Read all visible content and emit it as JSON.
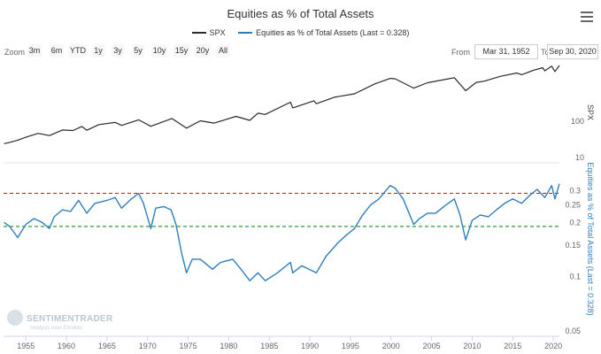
{
  "title": "Equities as % of Total Assets",
  "legend": [
    {
      "label": "SPX",
      "color": "#2b2b2b"
    },
    {
      "label": "Equities as % of Total Assets (Last = 0.328)",
      "color": "#2f7ebc"
    }
  ],
  "zoom": {
    "label": "Zoom",
    "buttons": [
      "3m",
      "6m",
      "YTD",
      "1y",
      "3y",
      "5y",
      "10y",
      "15y",
      "20y",
      "All"
    ]
  },
  "range": {
    "from_label": "From",
    "from_value": "Mar 31, 1952",
    "to_label": "To",
    "to_value": "Sep 30, 2020"
  },
  "watermark": {
    "brand": "SENTIMENTRADER",
    "tagline": "Analysis over Emotion"
  },
  "colors": {
    "spx": "#2b2b2b",
    "equities": "#2f7ebc",
    "upper_ref": "#d62728",
    "lower_ref": "#2ca02c"
  },
  "chart_data": [
    {
      "type": "line",
      "name": "SPX",
      "axis_label": "SPX",
      "scale": "log",
      "ylim": [
        10,
        3000
      ],
      "yticks": [
        10,
        100
      ],
      "xlim": [
        1952.25,
        2020.75
      ],
      "points": [
        [
          1952.3,
          24
        ],
        [
          1953.0,
          26
        ],
        [
          1954.0,
          30
        ],
        [
          1955.0,
          36
        ],
        [
          1956.5,
          46
        ],
        [
          1957.9,
          40
        ],
        [
          1959.5,
          57
        ],
        [
          1960.8,
          55
        ],
        [
          1961.9,
          71
        ],
        [
          1962.5,
          56
        ],
        [
          1964.0,
          80
        ],
        [
          1966.0,
          92
        ],
        [
          1966.8,
          76
        ],
        [
          1968.9,
          108
        ],
        [
          1970.4,
          72
        ],
        [
          1973.0,
          118
        ],
        [
          1974.8,
          64
        ],
        [
          1976.5,
          102
        ],
        [
          1978.2,
          88
        ],
        [
          1980.9,
          135
        ],
        [
          1982.6,
          105
        ],
        [
          1983.6,
          165
        ],
        [
          1984.5,
          152
        ],
        [
          1987.6,
          330
        ],
        [
          1987.9,
          230
        ],
        [
          1990.5,
          360
        ],
        [
          1990.8,
          300
        ],
        [
          1993.0,
          450
        ],
        [
          1995.5,
          560
        ],
        [
          1998.0,
          1050
        ],
        [
          1999.9,
          1480
        ],
        [
          2000.5,
          1450
        ],
        [
          2002.8,
          800
        ],
        [
          2004.5,
          1130
        ],
        [
          2007.8,
          1550
        ],
        [
          2009.2,
          680
        ],
        [
          2010.5,
          1150
        ],
        [
          2011.5,
          1250
        ],
        [
          2013.5,
          1700
        ],
        [
          2015.5,
          2080
        ],
        [
          2016.1,
          1880
        ],
        [
          2017.5,
          2450
        ],
        [
          2018.7,
          2920
        ],
        [
          2018.95,
          2400
        ],
        [
          2019.8,
          3200
        ],
        [
          2020.2,
          2300
        ],
        [
          2020.75,
          3363
        ]
      ]
    },
    {
      "type": "line",
      "name": "Equities as % of Total Assets (Last = 0.328)",
      "axis_label": "Equities as % of Total Assets (Last = 0.328)",
      "scale": "log",
      "ylim": [
        0.05,
        0.4
      ],
      "yticks": [
        0.05,
        0.1,
        0.15,
        0.2,
        0.25,
        0.3
      ],
      "xticks": [
        1955,
        1960,
        1965,
        1970,
        1975,
        1980,
        1985,
        1990,
        1995,
        2000,
        2005,
        2010,
        2015,
        2020
      ],
      "reference_lines": [
        {
          "value": 0.29,
          "style": "dashed",
          "color": "#d62728"
        },
        {
          "value": 0.19,
          "style": "dashed",
          "color": "#2ca02c"
        }
      ],
      "last": 0.328,
      "points": [
        [
          1952.3,
          0.2
        ],
        [
          1953.0,
          0.19
        ],
        [
          1954.0,
          0.165
        ],
        [
          1955.0,
          0.195
        ],
        [
          1956.0,
          0.21
        ],
        [
          1957.0,
          0.2
        ],
        [
          1957.9,
          0.185
        ],
        [
          1958.5,
          0.215
        ],
        [
          1959.5,
          0.235
        ],
        [
          1960.5,
          0.23
        ],
        [
          1961.5,
          0.265
        ],
        [
          1962.5,
          0.225
        ],
        [
          1963.5,
          0.255
        ],
        [
          1965.0,
          0.265
        ],
        [
          1966.0,
          0.275
        ],
        [
          1966.8,
          0.24
        ],
        [
          1968.0,
          0.27
        ],
        [
          1968.9,
          0.29
        ],
        [
          1969.5,
          0.255
        ],
        [
          1970.4,
          0.185
        ],
        [
          1971.0,
          0.24
        ],
        [
          1972.0,
          0.245
        ],
        [
          1972.9,
          0.235
        ],
        [
          1973.5,
          0.195
        ],
        [
          1974.2,
          0.135
        ],
        [
          1974.8,
          0.105
        ],
        [
          1975.5,
          0.125
        ],
        [
          1976.5,
          0.125
        ],
        [
          1978.0,
          0.11
        ],
        [
          1979.0,
          0.12
        ],
        [
          1980.5,
          0.125
        ],
        [
          1981.5,
          0.11
        ],
        [
          1982.6,
          0.095
        ],
        [
          1983.6,
          0.105
        ],
        [
          1984.5,
          0.095
        ],
        [
          1986.0,
          0.105
        ],
        [
          1987.6,
          0.12
        ],
        [
          1987.9,
          0.105
        ],
        [
          1989.0,
          0.115
        ],
        [
          1990.8,
          0.105
        ],
        [
          1992.0,
          0.13
        ],
        [
          1993.5,
          0.155
        ],
        [
          1994.5,
          0.17
        ],
        [
          1995.5,
          0.185
        ],
        [
          1996.5,
          0.22
        ],
        [
          1997.5,
          0.25
        ],
        [
          1998.5,
          0.27
        ],
        [
          1999.9,
          0.32
        ],
        [
          2000.5,
          0.31
        ],
        [
          2001.5,
          0.27
        ],
        [
          2002.8,
          0.195
        ],
        [
          2003.5,
          0.21
        ],
        [
          2004.5,
          0.225
        ],
        [
          2005.5,
          0.225
        ],
        [
          2006.5,
          0.245
        ],
        [
          2007.8,
          0.27
        ],
        [
          2008.5,
          0.22
        ],
        [
          2009.2,
          0.16
        ],
        [
          2010.0,
          0.205
        ],
        [
          2011.0,
          0.22
        ],
        [
          2012.0,
          0.215
        ],
        [
          2013.0,
          0.235
        ],
        [
          2014.0,
          0.255
        ],
        [
          2015.0,
          0.27
        ],
        [
          2016.1,
          0.255
        ],
        [
          2017.0,
          0.28
        ],
        [
          2018.0,
          0.305
        ],
        [
          2018.95,
          0.275
        ],
        [
          2019.8,
          0.32
        ],
        [
          2020.2,
          0.27
        ],
        [
          2020.75,
          0.328
        ]
      ]
    }
  ]
}
